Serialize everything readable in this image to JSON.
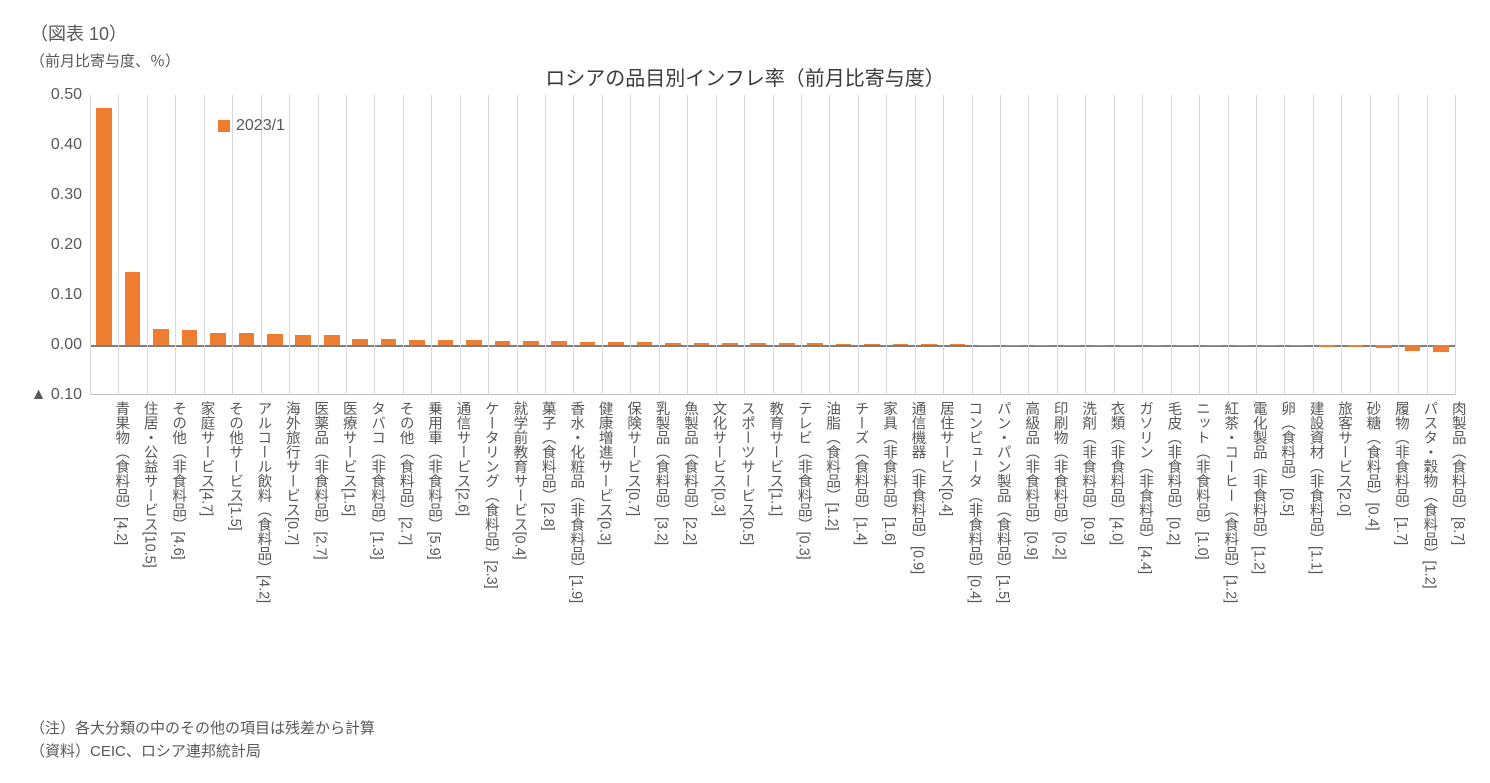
{
  "figure_number": "（図表 10）",
  "y_axis_label": "（前月比寄与度、％）",
  "chart": {
    "type": "bar",
    "title": "ロシアの品目別インフレ率（前月比寄与度）",
    "legend_label": "2023/1",
    "bar_color": "#ed7d31",
    "background_color": "#ffffff",
    "grid_color": "#d9d9d9",
    "axis_text_color": "#595959",
    "title_fontsize": 20,
    "label_fontsize": 14.5,
    "tick_fontsize": 16,
    "ylim": [
      -0.1,
      0.5
    ],
    "yticks": [
      {
        "value": 0.5,
        "label": "0.50"
      },
      {
        "value": 0.4,
        "label": "0.40"
      },
      {
        "value": 0.3,
        "label": "0.30"
      },
      {
        "value": 0.2,
        "label": "0.20"
      },
      {
        "value": 0.1,
        "label": "0.10"
      },
      {
        "value": 0.0,
        "label": "0.00"
      },
      {
        "value": -0.1,
        "label": "▲ 0.10"
      }
    ],
    "bar_width_ratio": 0.55,
    "categories": [
      {
        "label": "青果物（食料品）[4.2]",
        "value": 0.475
      },
      {
        "label": "住居・公益サービス[10.5]",
        "value": 0.147
      },
      {
        "label": "その他（非食料品）[4.6]",
        "value": 0.033
      },
      {
        "label": "家庭サービス[4.7]",
        "value": 0.03
      },
      {
        "label": "その他サービス[1.5]",
        "value": 0.024
      },
      {
        "label": "アルコール飲料（食料品）[4.2]",
        "value": 0.024
      },
      {
        "label": "海外旅行サービス[0.7]",
        "value": 0.022
      },
      {
        "label": "医薬品（非食料品）[2.7]",
        "value": 0.02
      },
      {
        "label": "医療サービス[1.5]",
        "value": 0.02
      },
      {
        "label": "タバコ（非食料品）[1.3]",
        "value": 0.013
      },
      {
        "label": "その他（食料品）[2.7]",
        "value": 0.012
      },
      {
        "label": "乗用車（非食料品）[5.9]",
        "value": 0.011
      },
      {
        "label": "通信サービス[2.6]",
        "value": 0.011
      },
      {
        "label": "ケータリング（食料品）[2.3]",
        "value": 0.01
      },
      {
        "label": "就学前教育サービス[0.4]",
        "value": 0.009
      },
      {
        "label": "菓子（食料品）[2.8]",
        "value": 0.009
      },
      {
        "label": "香水・化粧品（非食料品）[1.9]",
        "value": 0.008
      },
      {
        "label": "健康増進サービス[0.3]",
        "value": 0.007
      },
      {
        "label": "保険サービス[0.7]",
        "value": 0.007
      },
      {
        "label": "乳製品（食料品）[3.2]",
        "value": 0.006
      },
      {
        "label": "魚製品（食料品）[2.2]",
        "value": 0.005
      },
      {
        "label": "文化サービス[0.3]",
        "value": 0.005
      },
      {
        "label": "スポーツサービス[0.5]",
        "value": 0.004
      },
      {
        "label": "教育サービス[1.1]",
        "value": 0.004
      },
      {
        "label": "テレビ（非食料品）[0.3]",
        "value": 0.004
      },
      {
        "label": "油脂（食料品）[1.2]",
        "value": 0.004
      },
      {
        "label": "チーズ（食料品）[1.4]",
        "value": 0.003
      },
      {
        "label": "家具（非食料品）[1.6]",
        "value": 0.003
      },
      {
        "label": "通信機器（非食料品）[0.9]",
        "value": 0.003
      },
      {
        "label": "居住サービス[0.4]",
        "value": 0.002
      },
      {
        "label": "コンピュータ（非食料品）[0.4]",
        "value": 0.002
      },
      {
        "label": "パン・パン製品（食料品）[1.5]",
        "value": 0.001
      },
      {
        "label": "高級品（非食料品）[0.9]",
        "value": 0.001
      },
      {
        "label": "印刷物（非食料品）[0.2]",
        "value": 0.001
      },
      {
        "label": "洗剤（非食料品）[0.9]",
        "value": 0.001
      },
      {
        "label": "衣類（非食料品）[4.0]",
        "value": 0.0
      },
      {
        "label": "ガソリン（非食料品）[4.4]",
        "value": 0.0
      },
      {
        "label": "毛皮（非食料品）[0.2]",
        "value": 0.0
      },
      {
        "label": "ニット（非食料品）[1.0]",
        "value": 0.0
      },
      {
        "label": "紅茶・コーヒー（食料品）[1.2]",
        "value": 0.0
      },
      {
        "label": "電化製品（非食料品）[1.2]",
        "value": 0.0
      },
      {
        "label": "卵（食料品）[0.5]",
        "value": 0.0
      },
      {
        "label": "建設資材（非食料品）[1.1]",
        "value": 0.0
      },
      {
        "label": "旅客サービス[2.0]",
        "value": -0.003
      },
      {
        "label": "砂糖（食料品）[0.4]",
        "value": -0.004
      },
      {
        "label": "履物（非食料品）[1.7]",
        "value": -0.005
      },
      {
        "label": "パスタ・穀物（食料品）[1.2]",
        "value": -0.011
      },
      {
        "label": "肉製品（食料品）[8.7]",
        "value": -0.013
      }
    ]
  },
  "notes": {
    "line1": "（注）各大分類の中のその他の項目は残差から計算",
    "line2": "（資料）CEIC、ロシア連邦統計局"
  }
}
